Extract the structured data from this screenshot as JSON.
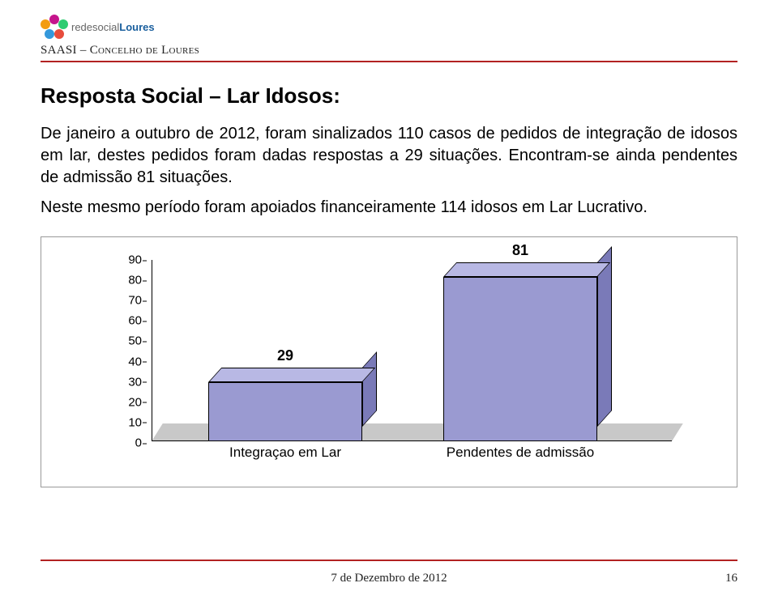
{
  "logo": {
    "text_gray": "rede",
    "text_gray2": "social",
    "text_blue": "Loures"
  },
  "subheader": "SAASI – Concelho de Loures",
  "title": "Resposta Social – Lar Idosos:",
  "para1": "De janeiro a outubro de 2012, foram sinalizados 110 casos de pedidos de integração de idosos em lar, destes pedidos foram dadas respostas a 29 situações. Encontram-se ainda pendentes de admissão 81 situações.",
  "para2": "Neste mesmo período foram apoiados financeiramente 114 idosos em Lar Lucrativo.",
  "chart": {
    "type": "bar",
    "y_ticks": [
      0,
      10,
      20,
      30,
      40,
      50,
      60,
      70,
      80,
      90
    ],
    "ylim": [
      0,
      90
    ],
    "bars": [
      {
        "label": "Integraçao em Lar",
        "value": 29,
        "value_text": "29"
      },
      {
        "label": "Pendentes de admissão",
        "value": 81,
        "value_text": "81"
      }
    ],
    "bar_front_color": "#9a9ad1",
    "bar_top_color": "#b8b8e4",
    "bar_side_color": "#7a7ab8",
    "floor_color": "#c8c8c8",
    "border_color": "#000000",
    "label_fontsize": 18,
    "axis_fontsize": 15,
    "xlabel_fontsize": 17
  },
  "footer": {
    "date": "7 de Dezembro de 2012",
    "page": "16"
  }
}
